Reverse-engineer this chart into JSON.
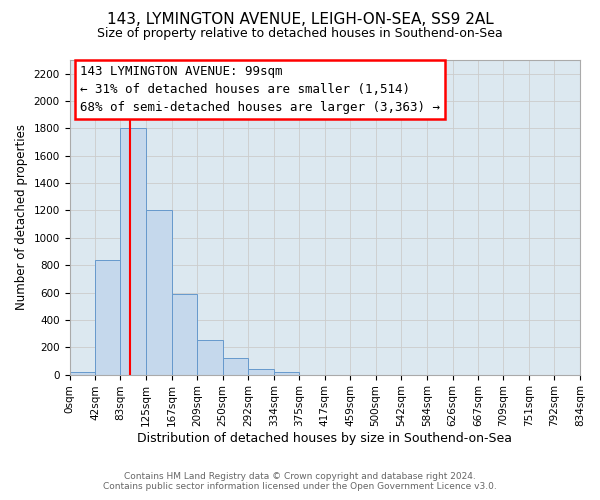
{
  "title": "143, LYMINGTON AVENUE, LEIGH-ON-SEA, SS9 2AL",
  "subtitle": "Size of property relative to detached houses in Southend-on-Sea",
  "xlabel": "Distribution of detached houses by size in Southend-on-Sea",
  "ylabel": "Number of detached properties",
  "footer_line1": "Contains HM Land Registry data © Crown copyright and database right 2024.",
  "footer_line2": "Contains public sector information licensed under the Open Government Licence v3.0.",
  "bar_edges": [
    0,
    42,
    83,
    125,
    167,
    209,
    250,
    292,
    334,
    375,
    417,
    459,
    500,
    542,
    584,
    626,
    667,
    709,
    751,
    792,
    834
  ],
  "bar_heights": [
    20,
    840,
    1800,
    1200,
    590,
    250,
    120,
    40,
    20,
    0,
    0,
    0,
    0,
    0,
    0,
    0,
    0,
    0,
    0,
    0
  ],
  "bar_color": "#c5d8ec",
  "bar_edge_color": "#6699cc",
  "bar_edge_width": 0.7,
  "red_line_x": 99,
  "ylim": [
    0,
    2300
  ],
  "yticks": [
    0,
    200,
    400,
    600,
    800,
    1000,
    1200,
    1400,
    1600,
    1800,
    2000,
    2200
  ],
  "xtick_labels": [
    "0sqm",
    "42sqm",
    "83sqm",
    "125sqm",
    "167sqm",
    "209sqm",
    "250sqm",
    "292sqm",
    "334sqm",
    "375sqm",
    "417sqm",
    "459sqm",
    "500sqm",
    "542sqm",
    "584sqm",
    "626sqm",
    "667sqm",
    "709sqm",
    "751sqm",
    "792sqm",
    "834sqm"
  ],
  "annotation_line1": "143 LYMINGTON AVENUE: 99sqm",
  "annotation_line2": "← 31% of detached houses are smaller (1,514)",
  "annotation_line3": "68% of semi-detached houses are larger (3,363) →",
  "grid_color": "#cccccc",
  "bg_color": "#dce8f0",
  "fig_bg_color": "#ffffff",
  "title_fontsize": 11,
  "subtitle_fontsize": 9,
  "ylabel_fontsize": 8.5,
  "xlabel_fontsize": 9,
  "tick_fontsize": 7.5,
  "footer_fontsize": 6.5,
  "annotation_fontsize": 9
}
